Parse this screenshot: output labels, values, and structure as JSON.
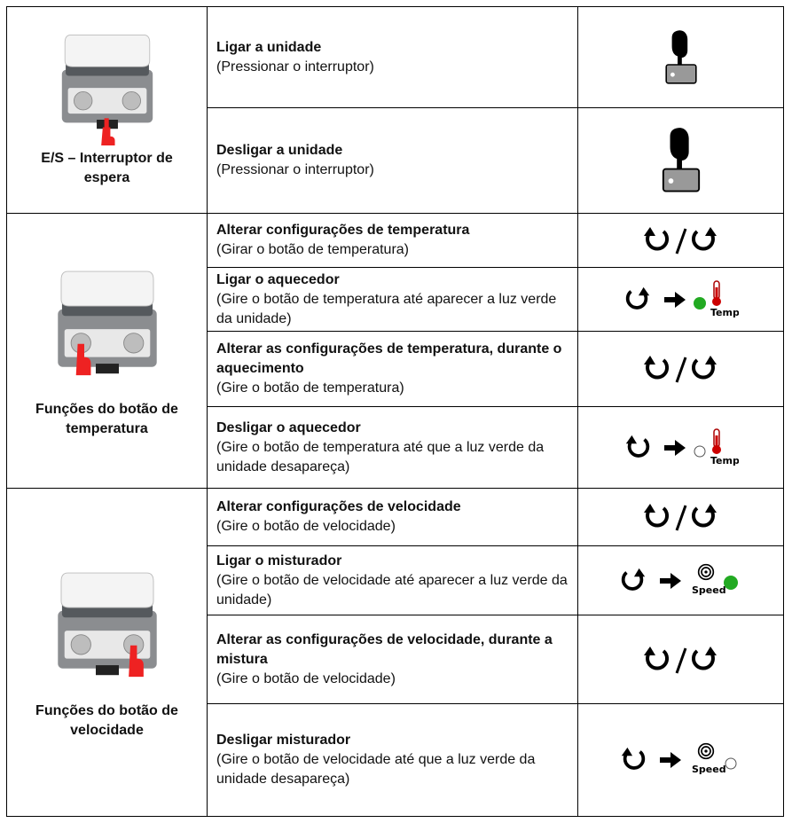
{
  "sections": [
    {
      "label": "E/S – Interruptor de espera",
      "rows": [
        {
          "title": "Ligar a unidade",
          "desc": "(Pressionar o interruptor)"
        },
        {
          "title": "Desligar a unidade",
          "desc": "(Pressionar o interruptor)"
        }
      ]
    },
    {
      "label": "Funções do botão de temperatura",
      "rows": [
        {
          "title": "Alterar configurações de temperatura",
          "desc": "(Girar o botão de temperatura)"
        },
        {
          "title": "Ligar o aquecedor",
          "desc": "(Gire o botão de temperatura até aparecer a luz verde da unidade)",
          "icon_text": "Temp"
        },
        {
          "title": "Alterar as configurações de temperatura, durante o aquecimento",
          "desc": "(Gire o botão de temperatura)"
        },
        {
          "title": "Desligar o aquecedor",
          "desc": "(Gire o botão de temperatura até que a luz verde da unidade desapareça)",
          "icon_text": "Temp"
        }
      ]
    },
    {
      "label": "Funções do botão de velocidade",
      "rows": [
        {
          "title": "Alterar configurações de velocidade",
          "desc": "(Gire o botão de velocidade)"
        },
        {
          "title": "Ligar o misturador",
          "desc": "(Gire o botão de velocidade até aparecer a luz verde da unidade)",
          "icon_text": "Speed"
        },
        {
          "title": "Alterar as configurações de velocidade, durante a mistura",
          "desc": "(Gire o botão de velocidade)"
        },
        {
          "title": "Desligar misturador",
          "desc": "(Gire o botão de velocidade até que a luz verde da unidade desapareça)",
          "icon_text": "Speed"
        }
      ]
    }
  ]
}
